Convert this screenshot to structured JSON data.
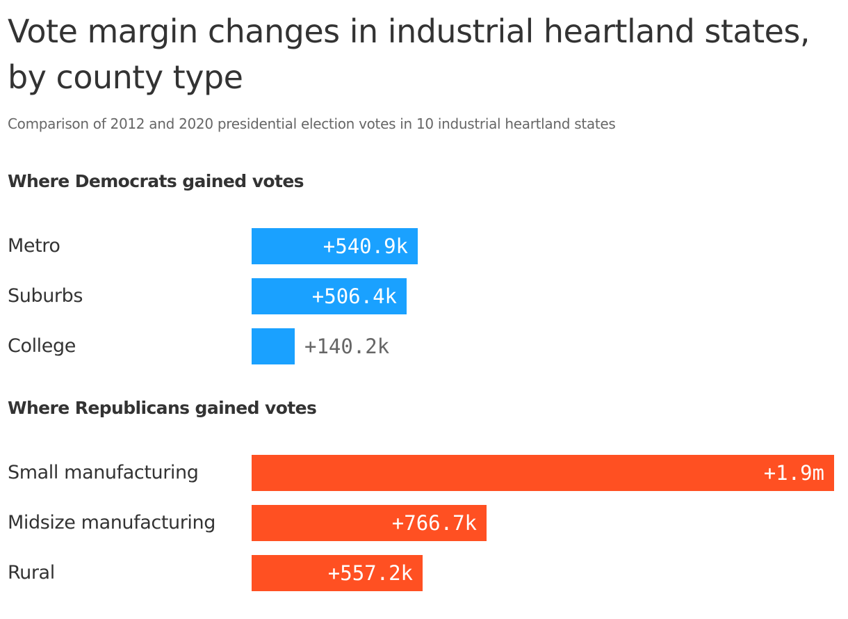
{
  "chart_data": {
    "type": "bar",
    "orientation": "horizontal",
    "title": "Vote margin changes in industrial heartland states, by county type",
    "subtitle": "Comparison of 2012 and 2020 presidential election votes in 10 industrial heartland states",
    "xlim": [
      0,
      1900000
    ],
    "grid": false,
    "groups": [
      {
        "name": "Where Democrats gained votes",
        "color": "#1aa1ff",
        "categories": [
          "Metro",
          "Suburbs",
          "College"
        ],
        "values": [
          540900,
          506400,
          140200
        ],
        "labels": [
          "+540.9k",
          "+506.4k",
          "+140.2k"
        ]
      },
      {
        "name": "Where Republicans gained votes",
        "color": "#ff5022",
        "categories": [
          "Small manufacturing",
          "Midsize manufacturing",
          "Rural"
        ],
        "values": [
          1900000,
          766700,
          557200
        ],
        "labels": [
          "+1.9m",
          "+766.7k",
          "+557.2k"
        ]
      }
    ]
  }
}
